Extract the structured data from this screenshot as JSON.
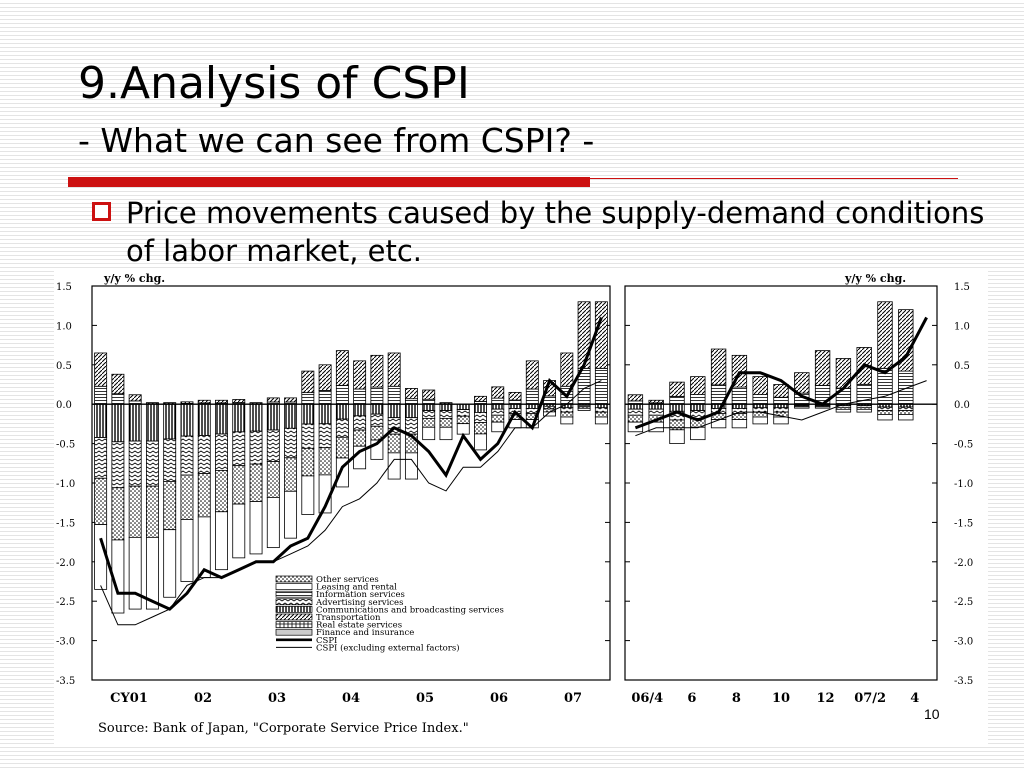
{
  "slide": {
    "title": "9.Analysis of CSPI",
    "subtitle": "- What we can see from CSPI? -",
    "bullet": "Price movements caused by the supply-demand conditions of labor market, etc.",
    "page_number": "10",
    "accent_color": "#cc1111"
  },
  "chart_data": {
    "type": "bar",
    "stacked": true,
    "ylabel": "y/y % chg.",
    "ylim": [
      -3.5,
      1.5
    ],
    "yticks": [
      "1.5",
      "1.0",
      "0.5",
      "0.0",
      "-0.5",
      "-1.0",
      "-1.5",
      "-2.0",
      "-2.5",
      "-3.0",
      "-3.5"
    ],
    "source": "Source: Bank of Japan, \"Corporate Service Price Index.\"",
    "legend_position": "bottom-center",
    "legend": [
      "Other services",
      "Leasing and rental",
      "Information services",
      "Advertising services",
      "Communications and broadcasting services",
      "Transportation",
      "Real estate services",
      "Finance and insurance",
      "CSPI",
      "CSPI (excluding external factors)"
    ],
    "panels": [
      {
        "name": "quarterly",
        "xticks": [
          "CY01",
          "02",
          "03",
          "04",
          "05",
          "06",
          "07"
        ],
        "cspi": [
          -1.7,
          -2.4,
          -2.4,
          -2.5,
          -2.6,
          -2.4,
          -2.1,
          -2.2,
          -2.1,
          -2.0,
          -2.0,
          -1.8,
          -1.7,
          -1.3,
          -0.8,
          -0.6,
          -0.5,
          -0.3,
          -0.4,
          -0.6,
          -0.9,
          -0.4,
          -0.7,
          -0.5,
          -0.1,
          -0.3,
          0.3,
          0.1,
          0.5,
          1.1
        ],
        "cspi_excl": [
          -2.3,
          -2.8,
          -2.8,
          -2.7,
          -2.6,
          -2.3,
          -2.2,
          -2.2,
          -2.1,
          -2.0,
          -2.0,
          -1.9,
          -1.8,
          -1.6,
          -1.3,
          -1.2,
          -1.0,
          -0.7,
          -0.7,
          -1.0,
          -1.1,
          -0.8,
          -0.8,
          -0.6,
          -0.3,
          -0.3,
          -0.1,
          0.0,
          0.2,
          0.3
        ],
        "positive_totals": [
          0.65,
          0.38,
          0.12,
          0.02,
          0.02,
          0.03,
          0.05,
          0.05,
          0.06,
          0.02,
          0.08,
          0.08,
          0.42,
          0.5,
          0.68,
          0.55,
          0.62,
          0.65,
          0.2,
          0.18,
          0.02,
          0.0,
          0.1,
          0.22,
          0.15,
          0.55,
          0.3,
          0.65,
          1.3,
          1.3
        ],
        "negative_totals": [
          -2.35,
          -2.65,
          -2.6,
          -2.6,
          -2.45,
          -2.25,
          -2.2,
          -2.1,
          -1.95,
          -1.9,
          -1.82,
          -1.7,
          -1.4,
          -1.38,
          -1.05,
          -0.82,
          -0.7,
          -0.95,
          -0.95,
          -0.45,
          -0.45,
          -0.38,
          -0.58,
          -0.35,
          -0.3,
          -0.3,
          -0.15,
          -0.25,
          -0.08,
          -0.25
        ]
      },
      {
        "name": "monthly",
        "xticks": [
          "06/4",
          "6",
          "8",
          "10",
          "12",
          "07/2",
          "4"
        ],
        "cspi": [
          -0.3,
          -0.2,
          -0.1,
          -0.2,
          -0.1,
          0.4,
          0.4,
          0.3,
          0.1,
          0.0,
          0.2,
          0.5,
          0.4,
          0.6,
          1.1
        ],
        "cspi_excl": [
          -0.4,
          -0.3,
          -0.3,
          -0.3,
          -0.2,
          -0.1,
          -0.1,
          -0.15,
          -0.2,
          -0.1,
          0.0,
          0.05,
          0.1,
          0.2,
          0.3
        ],
        "positive_totals": [
          0.12,
          0.05,
          0.28,
          0.35,
          0.7,
          0.62,
          0.35,
          0.25,
          0.4,
          0.68,
          0.58,
          0.72,
          1.3,
          1.2,
          0.0
        ],
        "negative_totals": [
          -0.35,
          -0.35,
          -0.5,
          -0.45,
          -0.3,
          -0.3,
          -0.25,
          -0.25,
          -0.05,
          -0.05,
          -0.1,
          -0.1,
          -0.2,
          -0.2,
          0.0
        ]
      }
    ]
  }
}
